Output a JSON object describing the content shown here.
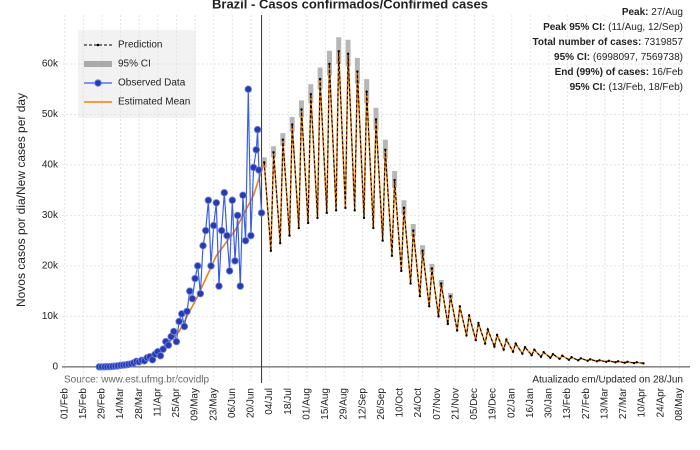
{
  "chart_data": {
    "type": "line",
    "title": "Brazil - Casos confirmados/Confirmed cases",
    "y_label": "Novos casos por dia/New cases per day",
    "source": "Source: www.est.ufmg.br/covidlp",
    "updated": "Atualizado em/Updated on 28/Jun",
    "vline": 148,
    "grid": true,
    "legend": "upper left",
    "annotations": [
      {
        "label": "Peak:",
        "value": "27/Aug"
      },
      {
        "label": "Peak 95% CI:",
        "value": "(11/Aug, 12/Sep)"
      },
      {
        "label": "Total number of cases:",
        "value": "7319857"
      },
      {
        "label": "95% CI:",
        "value": "(6998097, 7569738)"
      },
      {
        "label": "End (99%) of cases:",
        "value": "16/Feb"
      },
      {
        "label": "95% CI:",
        "value": "(13/Feb, 18/Feb)"
      }
    ],
    "xlim": [
      -2,
      470
    ],
    "ylim": [
      -3200,
      69700
    ],
    "xticks": [
      {
        "value": 0,
        "label": "01/Feb"
      },
      {
        "value": 14,
        "label": "15/Feb"
      },
      {
        "value": 28,
        "label": "29/Feb"
      },
      {
        "value": 42,
        "label": "14/Mar"
      },
      {
        "value": 56,
        "label": "28/Mar"
      },
      {
        "value": 70,
        "label": "11/Apr"
      },
      {
        "value": 84,
        "label": "25/Apr"
      },
      {
        "value": 98,
        "label": "09/May"
      },
      {
        "value": 112,
        "label": "23/May"
      },
      {
        "value": 126,
        "label": "06/Jun"
      },
      {
        "value": 140,
        "label": "20/Jun"
      },
      {
        "value": 154,
        "label": "04/Jul"
      },
      {
        "value": 168,
        "label": "18/Jul"
      },
      {
        "value": 182,
        "label": "01/Aug"
      },
      {
        "value": 196,
        "label": "15/Aug"
      },
      {
        "value": 210,
        "label": "29/Aug"
      },
      {
        "value": 224,
        "label": "12/Sep"
      },
      {
        "value": 238,
        "label": "26/Sep"
      },
      {
        "value": 252,
        "label": "10/Oct"
      },
      {
        "value": 266,
        "label": "24/Oct"
      },
      {
        "value": 280,
        "label": "07/Nov"
      },
      {
        "value": 294,
        "label": "21/Nov"
      },
      {
        "value": 308,
        "label": "05/Dec"
      },
      {
        "value": 322,
        "label": "19/Dec"
      },
      {
        "value": 336,
        "label": "02/Jan"
      },
      {
        "value": 350,
        "label": "16/Jan"
      },
      {
        "value": 364,
        "label": "30/Jan"
      },
      {
        "value": 378,
        "label": "13/Feb"
      },
      {
        "value": 392,
        "label": "27/Feb"
      },
      {
        "value": 406,
        "label": "13/Mar"
      },
      {
        "value": 420,
        "label": "27/Mar"
      },
      {
        "value": 434,
        "label": "10/Apr"
      },
      {
        "value": 448,
        "label": "24/Apr"
      },
      {
        "value": 462,
        "label": "08/May"
      }
    ],
    "yticks": [
      0,
      {
        "value": 10000,
        "label": "10k"
      },
      {
        "value": 20000,
        "label": "20k"
      },
      {
        "value": 30000,
        "label": "30k"
      },
      {
        "value": 40000,
        "label": "40k"
      },
      {
        "value": 50000,
        "label": "50k"
      },
      {
        "value": 60000,
        "label": "60k"
      }
    ],
    "series": [
      {
        "name": "Prediction",
        "color": "#000000",
        "x": [
          150,
          155,
          157,
          162,
          164,
          169,
          171,
          176,
          178,
          183,
          185,
          190,
          192,
          197,
          199,
          204,
          206,
          211,
          213,
          218,
          220,
          225,
          227,
          232,
          234,
          239,
          241,
          246,
          248,
          253,
          255,
          260,
          262,
          267,
          269,
          274,
          276,
          281,
          283,
          288,
          290,
          295,
          297,
          302,
          304,
          309,
          311,
          316,
          318,
          323,
          325,
          330,
          332,
          337,
          339,
          344,
          346,
          351,
          353,
          358,
          360,
          365,
          367,
          372,
          374,
          379,
          381,
          386,
          388,
          393,
          395,
          400,
          402,
          407,
          409,
          414,
          416,
          421,
          423,
          428,
          430,
          435
        ],
        "values": [
          40500,
          23000,
          42500,
          24500,
          45000,
          26000,
          48000,
          27500,
          51000,
          28500,
          54000,
          29500,
          57000,
          30500,
          60000,
          31000,
          62500,
          31500,
          62000,
          31000,
          58500,
          29500,
          54500,
          27500,
          49000,
          25000,
          43000,
          22000,
          37000,
          19000,
          31500,
          16500,
          27000,
          14000,
          23000,
          12000,
          19500,
          10000,
          16500,
          8500,
          14000,
          7200,
          12000,
          6200,
          10200,
          5300,
          8700,
          4600,
          7400,
          4000,
          6300,
          3400,
          5400,
          3000,
          4600,
          2600,
          3900,
          2300,
          3400,
          2000,
          2900,
          1800,
          2500,
          1600,
          2200,
          1400,
          1900,
          1300,
          1700,
          1200,
          1500,
          1100,
          1300,
          1000,
          1200,
          900,
          1100,
          800,
          1000,
          750,
          900,
          700
        ]
      },
      {
        "name": "95% CI",
        "color": "#aaaaaa",
        "x": [
          150,
          157,
          164,
          171,
          178,
          185,
          192,
          199,
          206,
          213,
          220,
          227,
          234,
          241,
          248,
          255,
          262,
          269,
          276,
          283,
          290
        ],
        "lower": [
          39500,
          41500,
          43800,
          46600,
          49400,
          52200,
          55000,
          57700,
          60000,
          59500,
          56100,
          52200,
          46900,
          41200,
          35500,
          30200,
          25900,
          22100,
          18800,
          15900,
          13500
        ],
        "upper": [
          41500,
          43700,
          46300,
          49500,
          52800,
          56000,
          59300,
          62600,
          65300,
          64800,
          61200,
          57000,
          51300,
          45000,
          38800,
          33000,
          28300,
          24100,
          20400,
          17200,
          14600
        ]
      },
      {
        "name": "Observed Data",
        "color": "#3b5fe0",
        "x": [
          26,
          28,
          30,
          32,
          34,
          36,
          38,
          40,
          42,
          44,
          46,
          48,
          50,
          52,
          54,
          56,
          58,
          60,
          62,
          64,
          66,
          68,
          70,
          72,
          74,
          76,
          78,
          80,
          82,
          84,
          86,
          88,
          90,
          92,
          94,
          96,
          98,
          100,
          102,
          104,
          106,
          108,
          110,
          112,
          114,
          116,
          118,
          120,
          122,
          124,
          126,
          128,
          130,
          132,
          134,
          136,
          138,
          140,
          142,
          144,
          145,
          146,
          148
        ],
        "values": [
          0,
          0,
          20,
          30,
          50,
          100,
          150,
          200,
          300,
          350,
          400,
          500,
          600,
          800,
          1100,
          1000,
          1300,
          1200,
          1800,
          2000,
          1400,
          2500,
          3000,
          2200,
          3500,
          5000,
          4300,
          6000,
          7000,
          5000,
          9000,
          10500,
          8000,
          11000,
          15000,
          13500,
          17500,
          20000,
          14500,
          24000,
          27000,
          33000,
          20000,
          28000,
          32500,
          16000,
          27000,
          34500,
          26000,
          19000,
          33000,
          21000,
          30000,
          16000,
          34000,
          25000,
          55000,
          26000,
          39500,
          43000,
          47000,
          39000,
          30500
        ]
      },
      {
        "name": "Estimated Mean",
        "color": "#f07f12",
        "x": [
          30,
          44,
          58,
          72,
          86,
          100,
          114,
          128,
          142,
          150,
          155,
          157,
          162,
          164,
          169,
          171,
          176,
          178,
          183,
          185,
          190,
          192,
          197,
          199,
          204,
          206,
          211,
          213,
          218,
          220,
          225,
          227,
          232,
          234,
          239,
          241,
          246,
          248,
          253,
          255,
          260,
          262,
          267,
          269,
          274,
          276,
          281,
          283,
          288,
          290,
          295,
          297,
          302,
          304,
          309,
          311,
          316,
          318,
          323,
          325,
          330,
          332,
          337,
          339,
          344,
          346,
          351,
          353,
          358,
          360,
          365,
          367,
          372,
          374,
          379,
          381,
          386,
          388,
          393,
          395,
          400,
          402,
          407,
          409,
          414,
          416,
          421,
          423,
          428,
          430,
          435
        ],
        "values": [
          0,
          300,
          1100,
          3000,
          7000,
          14000,
          22000,
          27000,
          34000,
          40500,
          23000,
          42500,
          24500,
          45000,
          26000,
          48000,
          27500,
          51000,
          28500,
          54000,
          29500,
          57000,
          30500,
          60000,
          31000,
          62500,
          31500,
          62000,
          31000,
          58500,
          29500,
          54500,
          27500,
          49000,
          25000,
          43000,
          22000,
          37000,
          19000,
          31500,
          16500,
          27000,
          14000,
          23000,
          12000,
          19500,
          10000,
          16500,
          8500,
          14000,
          7200,
          12000,
          6200,
          10200,
          5300,
          8700,
          4600,
          7400,
          4000,
          6300,
          3400,
          5400,
          3000,
          4600,
          2600,
          3900,
          2300,
          3400,
          2000,
          2900,
          1800,
          2500,
          1600,
          2200,
          1400,
          1900,
          1300,
          1700,
          1200,
          1500,
          1100,
          1300,
          1000,
          1200,
          900,
          1100,
          800,
          1000,
          750,
          900,
          700
        ]
      }
    ]
  }
}
